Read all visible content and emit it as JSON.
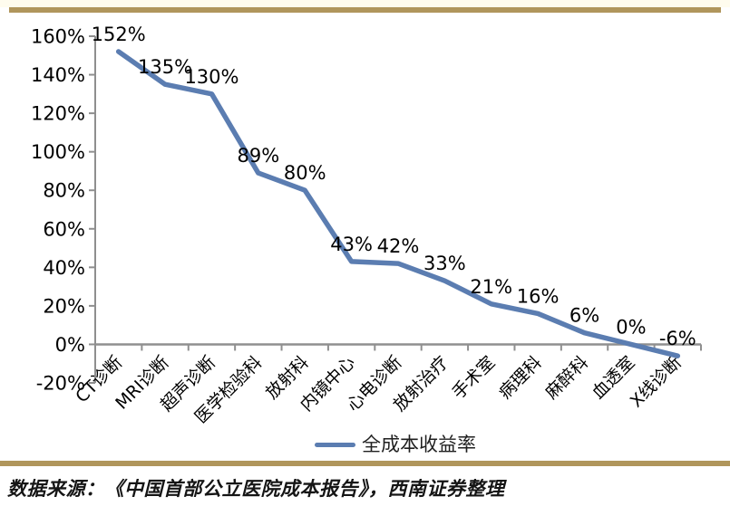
{
  "chart_data": {
    "type": "line",
    "title": "",
    "xlabel": "",
    "ylabel": "",
    "categories": [
      "CT诊断",
      "MRI诊断",
      "超声诊断",
      "医学检验科",
      "放射科",
      "内镜中心",
      "心电诊断",
      "放射治疗",
      "手术室",
      "病理科",
      "麻醉科",
      "血透室",
      "X线诊断"
    ],
    "series": [
      {
        "name": "全成本收益率",
        "values": [
          152,
          135,
          130,
          89,
          80,
          43,
          42,
          33,
          21,
          16,
          6,
          0,
          -6
        ]
      }
    ],
    "data_labels": [
      "152%",
      "135%",
      "130%",
      "89%",
      "80%",
      "43%",
      "42%",
      "33%",
      "21%",
      "16%",
      "6%",
      "0%",
      "-6%"
    ],
    "ylim": [
      -20,
      160
    ],
    "ytick_step": 20,
    "ytick_labels": [
      "160%",
      "140%",
      "120%",
      "100%",
      "80%",
      "60%",
      "40%",
      "20%",
      "0%",
      "-20%"
    ],
    "grid": false,
    "legend_position": "bottom",
    "colors": {
      "line": "#5b7db1",
      "accent_bar": "#b0965c",
      "axis": "#8f8f8f",
      "label_text": "#000000"
    }
  },
  "legend": {
    "series_label": "全成本收益率"
  },
  "source_note": "数据来源：《中国首部公立医院成本报告》，西南证券整理"
}
